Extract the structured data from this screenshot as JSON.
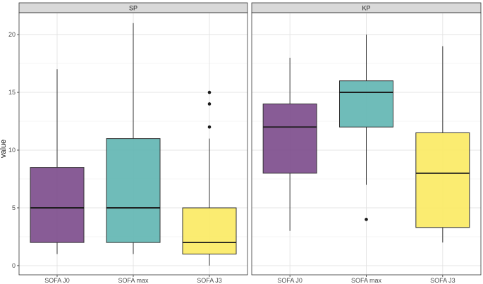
{
  "chart_data": {
    "type": "boxplot",
    "ylabel": "value",
    "xlabel": "",
    "ylim": [
      -0.8,
      21.9
    ],
    "yticks": [
      0,
      5,
      10,
      15,
      20
    ],
    "grid": true,
    "legend": "none",
    "categories": [
      "SOFA J0",
      "SOFA max",
      "SOFA J3"
    ],
    "colors": {
      "SOFA J0": "#7b4a8b",
      "SOFA max": "#5fb5b1",
      "SOFA J3": "#fbea62"
    },
    "panels": [
      {
        "name": "SP",
        "boxes": [
          {
            "category": "SOFA J0",
            "min": 1,
            "q1": 2,
            "median": 5,
            "q3": 8.5,
            "max": 17,
            "outliers": []
          },
          {
            "category": "SOFA max",
            "min": 1,
            "q1": 2,
            "median": 5,
            "q3": 11,
            "max": 21,
            "outliers": []
          },
          {
            "category": "SOFA J3",
            "min": 0,
            "q1": 1,
            "median": 2,
            "q3": 5,
            "max": 11,
            "outliers": [
              12,
              14,
              15
            ]
          }
        ]
      },
      {
        "name": "KP",
        "boxes": [
          {
            "category": "SOFA J0",
            "min": 3,
            "q1": 8,
            "median": 12,
            "q3": 14,
            "max": 18,
            "outliers": []
          },
          {
            "category": "SOFA max",
            "min": 7,
            "q1": 12,
            "median": 15,
            "q3": 16,
            "max": 20,
            "outliers": [
              4
            ]
          },
          {
            "category": "SOFA J3",
            "min": 2,
            "q1": 3.3,
            "median": 8,
            "q3": 11.5,
            "max": 19,
            "outliers": []
          }
        ]
      }
    ]
  }
}
